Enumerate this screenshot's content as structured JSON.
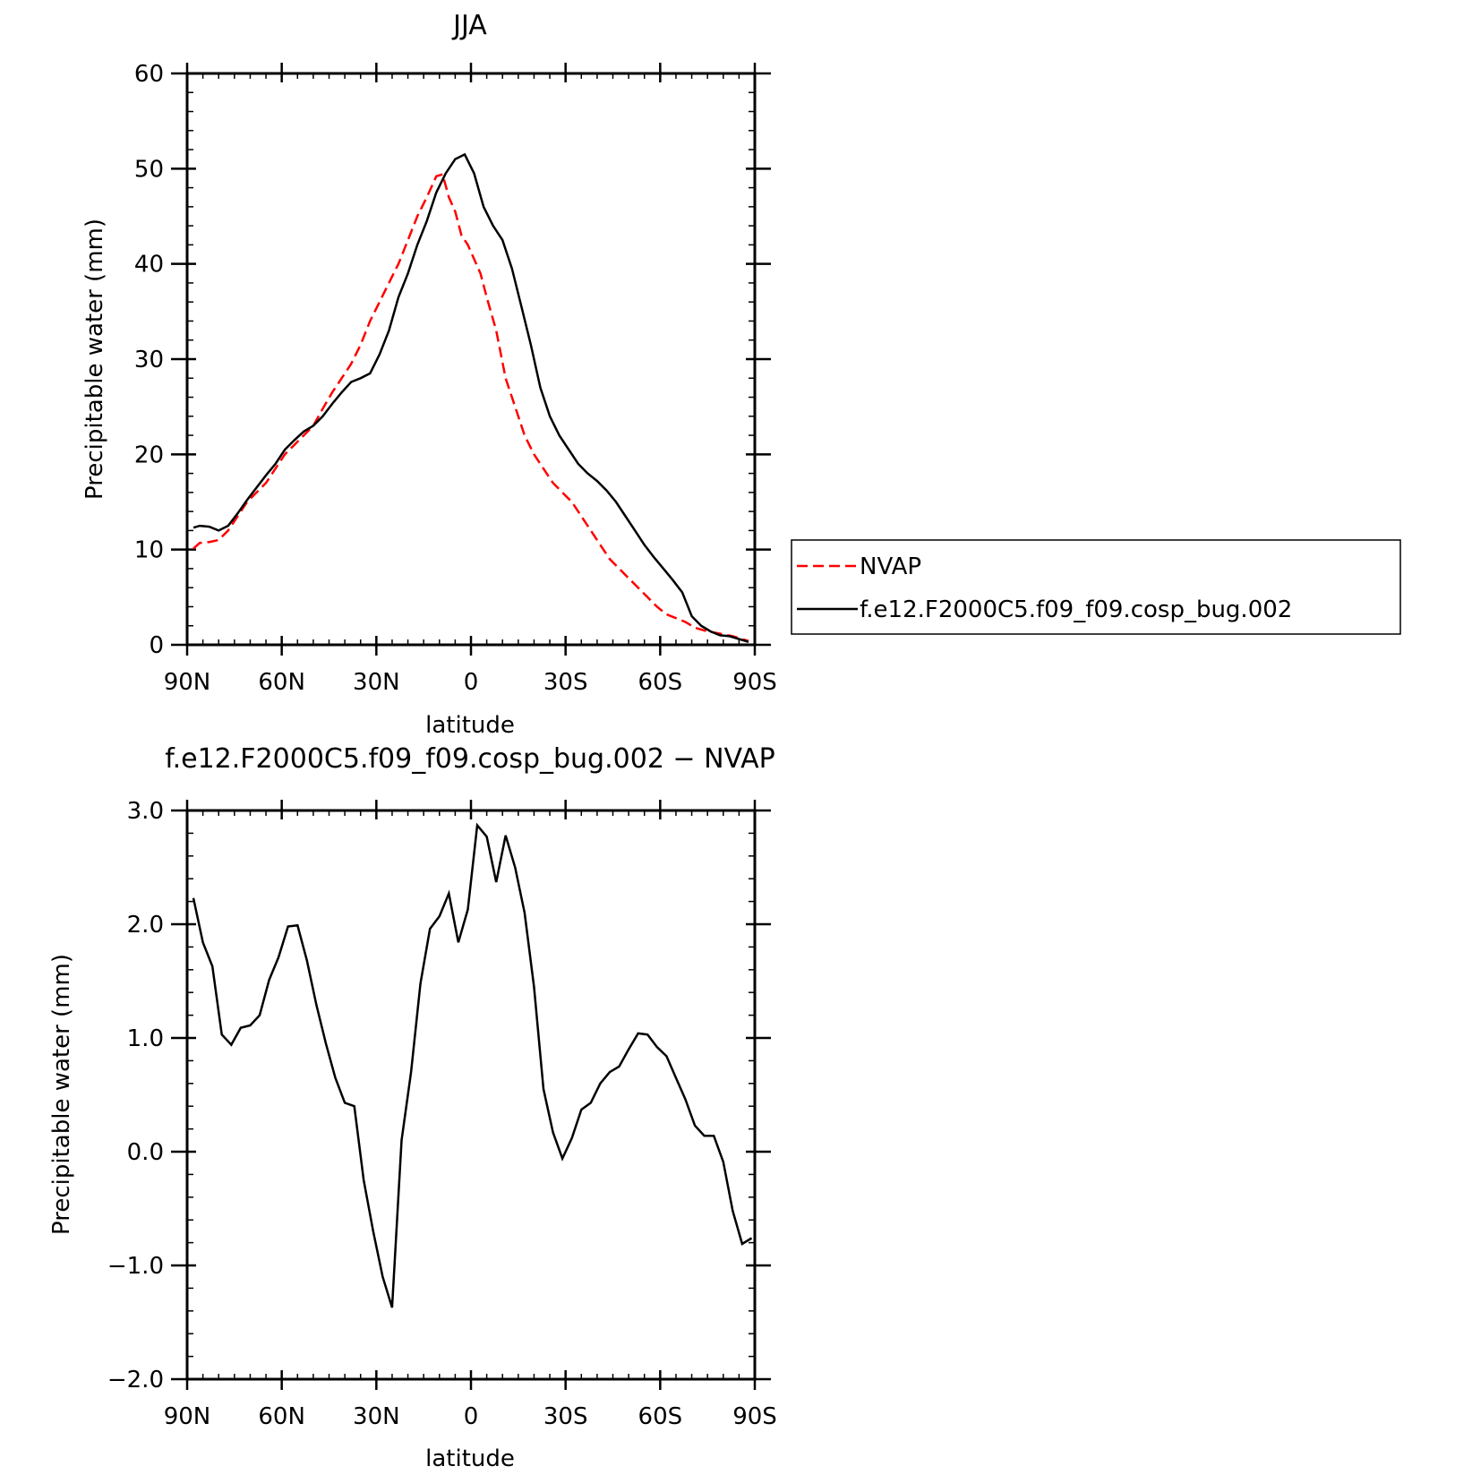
{
  "chart_data": [
    {
      "type": "line",
      "title": "JJA",
      "xlabel": "latitude",
      "ylabel": "Precipitable water (mm)",
      "xlim": [
        90,
        -90
      ],
      "ylim": [
        0,
        60
      ],
      "x_ticks": [
        {
          "value": 90,
          "label": "90N"
        },
        {
          "value": 60,
          "label": "60N"
        },
        {
          "value": 30,
          "label": "30N"
        },
        {
          "value": 0,
          "label": "0"
        },
        {
          "value": -30,
          "label": "30S"
        },
        {
          "value": -60,
          "label": "60S"
        },
        {
          "value": -90,
          "label": "90S"
        }
      ],
      "y_ticks": [
        {
          "value": 0,
          "label": "0"
        },
        {
          "value": 10,
          "label": "10"
        },
        {
          "value": 20,
          "label": "20"
        },
        {
          "value": 30,
          "label": "30"
        },
        {
          "value": 40,
          "label": "40"
        },
        {
          "value": 50,
          "label": "50"
        },
        {
          "value": 60,
          "label": "60"
        }
      ],
      "legend_position": "right",
      "series": [
        {
          "name": "NVAP",
          "color": "#ff0000",
          "dash": "dashed",
          "points": [
            [
              88,
              10.1
            ],
            [
              86,
              10.7
            ],
            [
              83,
              10.8
            ],
            [
              80,
              11.0
            ],
            [
              77,
              12.0
            ],
            [
              74,
              13.5
            ],
            [
              71,
              15.0
            ],
            [
              68,
              16.0
            ],
            [
              65,
              17.0
            ],
            [
              62,
              18.5
            ],
            [
              59,
              20.0
            ],
            [
              56,
              21.0
            ],
            [
              53,
              22.0
            ],
            [
              50,
              23.0
            ],
            [
              47,
              24.8
            ],
            [
              44,
              26.5
            ],
            [
              41,
              28.0
            ],
            [
              38,
              29.5
            ],
            [
              35,
              31.5
            ],
            [
              32,
              34.0
            ],
            [
              29,
              36.0
            ],
            [
              26,
              38.0
            ],
            [
              23,
              40.0
            ],
            [
              20,
              42.5
            ],
            [
              17,
              45.0
            ],
            [
              14,
              47.0
            ],
            [
              11,
              49.2
            ],
            [
              9,
              49.4
            ],
            [
              7,
              47.0
            ],
            [
              5,
              45.5
            ],
            [
              3,
              43.0
            ],
            [
              1,
              42.0
            ],
            [
              -1,
              40.5
            ],
            [
              -3,
              39.0
            ],
            [
              -5,
              36.5
            ],
            [
              -8,
              33.0
            ],
            [
              -11,
              28.0
            ],
            [
              -14,
              25.0
            ],
            [
              -17,
              22.0
            ],
            [
              -20,
              20.0
            ],
            [
              -23,
              18.5
            ],
            [
              -26,
              17.0
            ],
            [
              -29,
              16.0
            ],
            [
              -32,
              15.0
            ],
            [
              -35,
              13.5
            ],
            [
              -38,
              12.0
            ],
            [
              -41,
              10.5
            ],
            [
              -44,
              9.0
            ],
            [
              -47,
              8.0
            ],
            [
              -50,
              7.0
            ],
            [
              -53,
              6.0
            ],
            [
              -56,
              5.0
            ],
            [
              -59,
              4.0
            ],
            [
              -62,
              3.2
            ],
            [
              -65,
              2.8
            ],
            [
              -68,
              2.4
            ],
            [
              -71,
              1.8
            ],
            [
              -74,
              1.5
            ],
            [
              -77,
              1.3
            ],
            [
              -80,
              1.1
            ],
            [
              -83,
              0.9
            ],
            [
              -86,
              0.6
            ],
            [
              -88,
              0.4
            ]
          ]
        },
        {
          "name": "f.e12.F2000C5.f09_f09.cosp_bug.002",
          "color": "#000000",
          "dash": "solid",
          "points": [
            [
              88,
              12.3
            ],
            [
              86,
              12.5
            ],
            [
              83,
              12.4
            ],
            [
              80,
              12.0
            ],
            [
              77,
              12.5
            ],
            [
              74,
              13.8
            ],
            [
              71,
              15.2
            ],
            [
              68,
              16.5
            ],
            [
              65,
              17.8
            ],
            [
              62,
              19.0
            ],
            [
              59,
              20.5
            ],
            [
              56,
              21.5
            ],
            [
              53,
              22.4
            ],
            [
              50,
              23.0
            ],
            [
              47,
              24.0
            ],
            [
              44,
              25.3
            ],
            [
              41,
              26.5
            ],
            [
              38,
              27.6
            ],
            [
              35,
              28.0
            ],
            [
              32,
              28.5
            ],
            [
              29,
              30.5
            ],
            [
              26,
              33.0
            ],
            [
              23,
              36.5
            ],
            [
              20,
              39.0
            ],
            [
              17,
              42.0
            ],
            [
              14,
              44.5
            ],
            [
              11,
              47.5
            ],
            [
              8,
              49.5
            ],
            [
              5,
              51.0
            ],
            [
              2,
              51.5
            ],
            [
              -1,
              49.5
            ],
            [
              -4,
              46.0
            ],
            [
              -7,
              44.0
            ],
            [
              -10,
              42.5
            ],
            [
              -13,
              39.5
            ],
            [
              -16,
              35.5
            ],
            [
              -19,
              31.5
            ],
            [
              -22,
              27.0
            ],
            [
              -25,
              24.0
            ],
            [
              -28,
              22.0
            ],
            [
              -31,
              20.5
            ],
            [
              -34,
              19.0
            ],
            [
              -37,
              18.0
            ],
            [
              -40,
              17.2
            ],
            [
              -43,
              16.2
            ],
            [
              -46,
              15.0
            ],
            [
              -49,
              13.5
            ],
            [
              -52,
              12.0
            ],
            [
              -55,
              10.5
            ],
            [
              -58,
              9.2
            ],
            [
              -61,
              8.0
            ],
            [
              -64,
              6.8
            ],
            [
              -67,
              5.5
            ],
            [
              -70,
              3.0
            ],
            [
              -73,
              2.0
            ],
            [
              -76,
              1.4
            ],
            [
              -79,
              1.0
            ],
            [
              -82,
              0.9
            ],
            [
              -85,
              0.6
            ],
            [
              -88,
              0.3
            ]
          ]
        }
      ]
    },
    {
      "type": "line",
      "title": "f.e12.F2000C5.f09_f09.cosp_bug.002 − NVAP",
      "xlabel": "latitude",
      "ylabel": "Precipitable water (mm)",
      "xlim": [
        90,
        -90
      ],
      "ylim": [
        -2.0,
        3.0
      ],
      "x_ticks": [
        {
          "value": 90,
          "label": "90N"
        },
        {
          "value": 60,
          "label": "60N"
        },
        {
          "value": 30,
          "label": "30N"
        },
        {
          "value": 0,
          "label": "0"
        },
        {
          "value": -30,
          "label": "30S"
        },
        {
          "value": -60,
          "label": "60S"
        },
        {
          "value": -90,
          "label": "90S"
        }
      ],
      "y_ticks": [
        {
          "value": -2.0,
          "label": "−2.0"
        },
        {
          "value": -1.0,
          "label": "−1.0"
        },
        {
          "value": 0.0,
          "label": "0.0"
        },
        {
          "value": 1.0,
          "label": "1.0"
        },
        {
          "value": 2.0,
          "label": "2.0"
        },
        {
          "value": 3.0,
          "label": "3.0"
        }
      ],
      "series": [
        {
          "color": "#000000",
          "dash": "solid",
          "points": [
            [
              88,
              2.23
            ],
            [
              85,
              1.84
            ],
            [
              82,
              1.63
            ],
            [
              79,
              1.03
            ],
            [
              76,
              0.94
            ],
            [
              73,
              1.09
            ],
            [
              70,
              1.11
            ],
            [
              67,
              1.2
            ],
            [
              64,
              1.51
            ],
            [
              61,
              1.71
            ],
            [
              58,
              1.98
            ],
            [
              55,
              1.99
            ],
            [
              52,
              1.68
            ],
            [
              49,
              1.29
            ],
            [
              46,
              0.95
            ],
            [
              43,
              0.65
            ],
            [
              40,
              0.43
            ],
            [
              37,
              0.4
            ],
            [
              34,
              -0.25
            ],
            [
              31,
              -0.7
            ],
            [
              28,
              -1.1
            ],
            [
              25,
              -1.37
            ],
            [
              22,
              0.1
            ],
            [
              19,
              0.7
            ],
            [
              16,
              1.48
            ],
            [
              13,
              1.96
            ],
            [
              10,
              2.07
            ],
            [
              7,
              2.27
            ],
            [
              4,
              1.84
            ],
            [
              1,
              2.13
            ],
            [
              -2,
              2.87
            ],
            [
              -5,
              2.77
            ],
            [
              -8,
              2.37
            ],
            [
              -11,
              2.78
            ],
            [
              -14,
              2.5
            ],
            [
              -17,
              2.1
            ],
            [
              -20,
              1.45
            ],
            [
              -23,
              0.55
            ],
            [
              -26,
              0.17
            ],
            [
              -29,
              -0.06
            ],
            [
              -32,
              0.12
            ],
            [
              -35,
              0.37
            ],
            [
              -38,
              0.43
            ],
            [
              -41,
              0.6
            ],
            [
              -44,
              0.7
            ],
            [
              -47,
              0.75
            ],
            [
              -50,
              0.9
            ],
            [
              -53,
              1.04
            ],
            [
              -56,
              1.03
            ],
            [
              -59,
              0.92
            ],
            [
              -62,
              0.84
            ],
            [
              -65,
              0.65
            ],
            [
              -68,
              0.46
            ],
            [
              -71,
              0.23
            ],
            [
              -74,
              0.14
            ],
            [
              -77,
              0.14
            ],
            [
              -80,
              -0.09
            ],
            [
              -83,
              -0.52
            ],
            [
              -86,
              -0.81
            ],
            [
              -89,
              -0.76
            ]
          ]
        }
      ]
    }
  ]
}
